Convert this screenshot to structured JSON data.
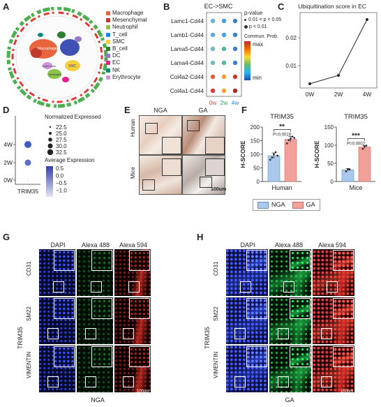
{
  "panels": {
    "A": {
      "label": "A",
      "legend": [
        {
          "name": "Macrophage",
          "color": "#e8643c"
        },
        {
          "name": "Mesenchymal",
          "color": "#c0392b"
        },
        {
          "name": "Neutrophil",
          "color": "#8bc34a"
        },
        {
          "name": "T_cell",
          "color": "#1e88e5"
        },
        {
          "name": "SMC",
          "color": "#f4d03f"
        },
        {
          "name": "B_cell",
          "color": "#2e7d32"
        },
        {
          "name": "DC",
          "color": "#9575cd"
        },
        {
          "name": "EC",
          "color": "#e91e8c"
        },
        {
          "name": "NK",
          "color": "#00897b"
        },
        {
          "name": "Erythrocyte",
          "color": "#ce93d8"
        }
      ],
      "cluster_labels": [
        "Macrophage",
        "Erythrocyte",
        "SMC",
        "Neutrophil"
      ]
    },
    "B": {
      "label": "B",
      "title": "EC->SMC",
      "pairs": [
        "Lamc1-Cd44",
        "Lamb1-Cd44",
        "Lama5-Cd44",
        "Lama4-Cd44",
        "Col4a2-Cd44",
        "Col4a1-Cd44"
      ],
      "timepoints": [
        {
          "label": "0w",
          "color": "#e74c3c"
        },
        {
          "label": "2w",
          "color": "#27ae60"
        },
        {
          "label": "4w",
          "color": "#2e86de"
        }
      ],
      "dot_colors": [
        [
          "#6bb3d6",
          "#4a9ad0",
          "#3d7fc8"
        ],
        [
          "#5fa8d3",
          "#4ea0cf",
          "#3d7fc8"
        ],
        [
          "#6fbac6",
          "#58b2a0",
          "#3d7fc8"
        ],
        [
          "#6fbac6",
          "#58b2a0",
          "#3d7fc8"
        ],
        [
          "#e55a3a",
          "#f0a030",
          "#c73c2c"
        ],
        [
          "#d63a3a",
          "#f0a030",
          "#a8281f"
        ]
      ],
      "pvalue_title": "p-value",
      "pvalue_items": [
        "0.01 < p < 0.05",
        "p < 0.01"
      ],
      "colorbar_title": "Commun. Prob.",
      "colorbar_max": "max",
      "colorbar_min": "min"
    },
    "C": {
      "label": "C",
      "chart_data": {
        "type": "line",
        "title": "Ubiquitination score in EC",
        "categories": [
          "0W",
          "2W",
          "4W"
        ],
        "values": [
          0.0035,
          0.0065,
          0.0265
        ],
        "yticks": [
          "0.01",
          "0.02"
        ],
        "ytick_values": [
          0.01,
          0.02
        ],
        "ylim": [
          0.002,
          0.029
        ]
      }
    },
    "D": {
      "label": "D",
      "rows": [
        "4W",
        "2W",
        "0W"
      ],
      "xlabel": "TRIM35",
      "dots": [
        {
          "row": "4W",
          "color": "#3b5fc0"
        },
        {
          "row": "2W",
          "color": "#5b6ec8"
        },
        {
          "row": "0W",
          "color": "#d9d6ee"
        }
      ],
      "size_title": "Normalized Expressed",
      "size_items": [
        "22.5",
        "25.0",
        "27.5",
        "30.0",
        "32.5"
      ],
      "color_title": "Average Expression",
      "color_ticks": [
        "0.5",
        "0.0",
        "−0.5",
        "−1.0"
      ]
    },
    "E": {
      "label": "E",
      "col_labels": [
        "NGA",
        "GA"
      ],
      "row_labels": [
        "Human",
        "Mice"
      ],
      "scalebar": "100um"
    },
    "F": {
      "label": "F",
      "chart_data": [
        {
          "type": "bar",
          "title": "TRIM35",
          "ylabel": "H-SCORE",
          "xlabel": "Human",
          "categories": [
            "NGA",
            "GA"
          ],
          "values": [
            95,
            155
          ],
          "errors": [
            10,
            10
          ],
          "points": [
            [
              80,
              88,
              100,
              108,
              95
            ],
            [
              140,
              152,
              158,
              165,
              160
            ]
          ],
          "ylim": [
            0,
            200
          ],
          "yticks": [
            "0",
            "50",
            "100",
            "150",
            "200"
          ],
          "significance": "**",
          "pvalue": "P=0.0019"
        },
        {
          "type": "bar",
          "title": "TRIM35",
          "ylabel": "H-SCORE",
          "xlabel": "Mice",
          "categories": [
            "NGA",
            "GA"
          ],
          "values": [
            32,
            95
          ],
          "errors": [
            4,
            4
          ],
          "points": [
            [
              28,
              34,
              33
            ],
            [
              90,
              96,
              99
            ]
          ],
          "ylim": [
            0,
            150
          ],
          "yticks": [
            "0",
            "50",
            "100",
            "150"
          ],
          "significance": "***",
          "pvalue": "P=0.0002"
        }
      ],
      "legend": [
        {
          "name": "NGA",
          "color": "#a9c8ec"
        },
        {
          "name": "GA",
          "color": "#f2a09a"
        }
      ]
    },
    "G": {
      "label": "G",
      "channels": [
        {
          "name": "DAPI",
          "color": "#2a3de0"
        },
        {
          "name": "Alexa 488",
          "color": "#19a84a"
        },
        {
          "name": "Alexa 594",
          "color": "#e02828"
        }
      ],
      "side_label": "TRIM35",
      "row_labels": [
        "CD31",
        "SM22",
        "VIMENTIN"
      ],
      "bottom_label": "NGA",
      "scalebar": "100um"
    },
    "H": {
      "label": "H",
      "channels": [
        {
          "name": "DAPI",
          "color": "#2a3de0"
        },
        {
          "name": "Alexa 488",
          "color": "#19a84a"
        },
        {
          "name": "Alexa 594",
          "color": "#e02828"
        }
      ],
      "side_label": "TRIM35",
      "row_labels": [
        "CD31",
        "SM22",
        "VIMENTIN"
      ],
      "bottom_label": "GA",
      "scalebar": "100um"
    }
  }
}
